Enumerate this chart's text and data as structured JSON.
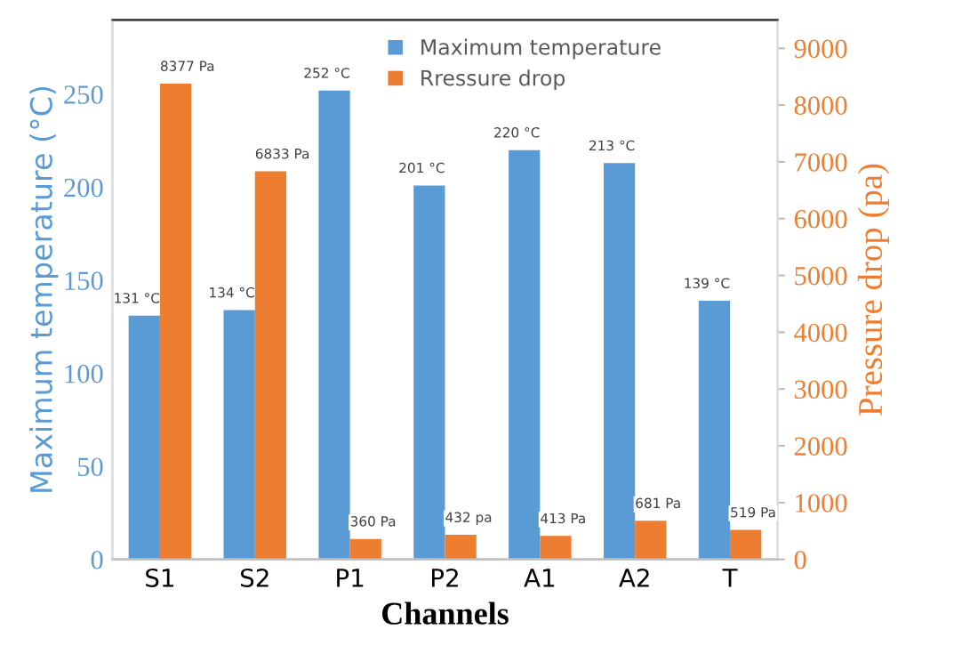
{
  "chart_data": {
    "type": "bar",
    "xlabel": "Channels",
    "ylabel": "Maximum temperature (°C)",
    "y2label": "Pressure drop (pa)",
    "categories": [
      "S1",
      "S2",
      "P1",
      "P2",
      "A1",
      "A2",
      "T"
    ],
    "series": [
      {
        "name": "Maximum temperature",
        "color": "#5b9bd5",
        "values": [
          131,
          134,
          252,
          201,
          220,
          213,
          139
        ],
        "value_labels": [
          "131 °C",
          "134 °C",
          "252 °C",
          "201 °C",
          "220 °C",
          "213 °C",
          "139 °C"
        ]
      },
      {
        "name": "Rressure drop",
        "color": "#ed7d31",
        "axis": "y2",
        "values": [
          8377,
          6833,
          360,
          432,
          413,
          681,
          519
        ],
        "value_labels": [
          "8377 Pa",
          "6833 Pa",
          "360 Pa",
          "432 pa",
          "413 Pa",
          "681 Pa",
          "519 Pa"
        ]
      }
    ],
    "ylim": [
      0,
      290
    ],
    "yticks": [
      0,
      50,
      100,
      150,
      200,
      250
    ],
    "y2lim": [
      0,
      9500
    ],
    "y2ticks": [
      0,
      1000,
      2000,
      3000,
      4000,
      5000,
      6000,
      7000,
      8000,
      9000
    ],
    "legend": "top",
    "grid": false
  }
}
